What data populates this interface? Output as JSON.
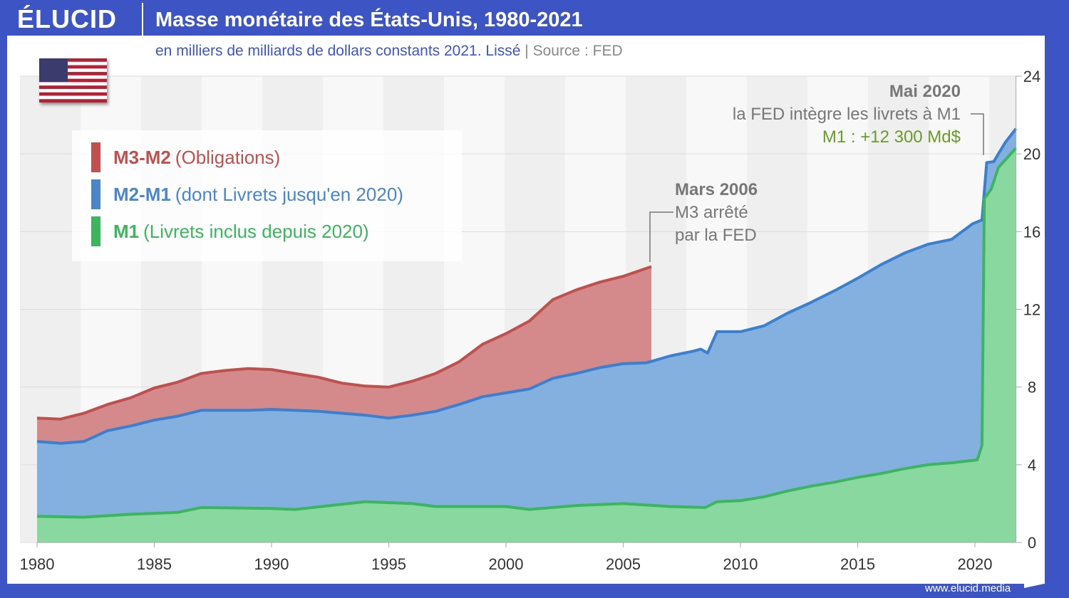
{
  "header": {
    "logo": "ÉLUCID",
    "title": "Masse monétaire des États-Unis, 1980-2021",
    "subtitle": "en milliers de milliards de dollars constants 2021. Lissé",
    "separator": "|",
    "source": "Source : FED",
    "url": "www.elucid.media"
  },
  "legend": [
    {
      "key": "M3-M2",
      "desc": "(Obligations)",
      "color": "#c0504d"
    },
    {
      "key": "M2-M1",
      "desc": "(dont Livrets jusqu'en 2020)",
      "color": "#4a86c8"
    },
    {
      "key": "M1",
      "desc": "(Livrets inclus depuis 2020)",
      "color": "#3cb55f"
    }
  ],
  "annotations": {
    "mars2006": {
      "title": "Mars 2006",
      "line1": "M3 arrêté",
      "line2": "par la FED"
    },
    "mai2020": {
      "title": "Mai 2020",
      "line1": "la FED intègre les livrets à M1",
      "line2": "M1 : +12 300 Md$"
    }
  },
  "chart_data": {
    "type": "area",
    "title": "Masse monétaire des États-Unis, 1980-2021",
    "ylabel": "en milliers de milliards de dollars constants 2021",
    "xlim": [
      1980,
      2021.75
    ],
    "ylim": [
      0,
      24
    ],
    "xticks": [
      1980,
      1985,
      1990,
      1995,
      2000,
      2005,
      2010,
      2015,
      2020
    ],
    "yticks": [
      0,
      4,
      8,
      12,
      16,
      20,
      24
    ],
    "grid": true,
    "legend_position": "top-left",
    "series": [
      {
        "name": "M3",
        "color": "#d48a8a",
        "line": "#c0504d",
        "points": [
          [
            1980,
            6.4
          ],
          [
            1981,
            6.35
          ],
          [
            1982,
            6.65
          ],
          [
            1983,
            7.1
          ],
          [
            1984,
            7.45
          ],
          [
            1985,
            7.95
          ],
          [
            1986,
            8.25
          ],
          [
            1987,
            8.7
          ],
          [
            1988,
            8.85
          ],
          [
            1989,
            8.95
          ],
          [
            1990,
            8.9
          ],
          [
            1991,
            8.7
          ],
          [
            1992,
            8.5
          ],
          [
            1993,
            8.2
          ],
          [
            1994,
            8.05
          ],
          [
            1995,
            8.0
          ],
          [
            1996,
            8.3
          ],
          [
            1997,
            8.7
          ],
          [
            1998,
            9.3
          ],
          [
            1999,
            10.2
          ],
          [
            2000,
            10.75
          ],
          [
            2001,
            11.4
          ],
          [
            2002,
            12.5
          ],
          [
            2003,
            13.0
          ],
          [
            2004,
            13.4
          ],
          [
            2005,
            13.7
          ],
          [
            2006.2,
            14.2
          ]
        ]
      },
      {
        "name": "M2",
        "color": "#84b0e0",
        "line": "#3a7fd0",
        "points": [
          [
            1980,
            5.2
          ],
          [
            1981,
            5.1
          ],
          [
            1982,
            5.2
          ],
          [
            1983,
            5.75
          ],
          [
            1984,
            6.0
          ],
          [
            1985,
            6.3
          ],
          [
            1986,
            6.5
          ],
          [
            1987,
            6.8
          ],
          [
            1988,
            6.8
          ],
          [
            1989,
            6.8
          ],
          [
            1990,
            6.85
          ],
          [
            1991,
            6.8
          ],
          [
            1992,
            6.75
          ],
          [
            1993,
            6.65
          ],
          [
            1994,
            6.55
          ],
          [
            1995,
            6.4
          ],
          [
            1996,
            6.55
          ],
          [
            1997,
            6.75
          ],
          [
            1998,
            7.1
          ],
          [
            1999,
            7.5
          ],
          [
            2000,
            7.7
          ],
          [
            2001,
            7.9
          ],
          [
            2002,
            8.45
          ],
          [
            2003,
            8.7
          ],
          [
            2004,
            9.0
          ],
          [
            2005,
            9.2
          ],
          [
            2006,
            9.25
          ],
          [
            2007,
            9.6
          ],
          [
            2008,
            9.85
          ],
          [
            2008.3,
            9.95
          ],
          [
            2008.6,
            9.75
          ],
          [
            2009,
            10.85
          ],
          [
            2010,
            10.85
          ],
          [
            2011,
            11.15
          ],
          [
            2012,
            11.8
          ],
          [
            2013,
            12.35
          ],
          [
            2014,
            12.95
          ],
          [
            2015,
            13.6
          ],
          [
            2016,
            14.3
          ],
          [
            2017,
            14.9
          ],
          [
            2018,
            15.35
          ],
          [
            2019,
            15.6
          ],
          [
            2019.9,
            16.4
          ],
          [
            2020.3,
            16.6
          ],
          [
            2020.5,
            19.55
          ],
          [
            2020.8,
            19.6
          ],
          [
            2021.3,
            20.6
          ],
          [
            2021.75,
            21.3
          ]
        ]
      },
      {
        "name": "M1",
        "color": "#88d8a0",
        "line": "#3cb55f",
        "points": [
          [
            1980,
            1.35
          ],
          [
            1982,
            1.3
          ],
          [
            1984,
            1.45
          ],
          [
            1986,
            1.55
          ],
          [
            1987,
            1.8
          ],
          [
            1990,
            1.75
          ],
          [
            1991,
            1.7
          ],
          [
            1994,
            2.1
          ],
          [
            1996,
            2.0
          ],
          [
            1997,
            1.85
          ],
          [
            2000,
            1.85
          ],
          [
            2001,
            1.7
          ],
          [
            2003,
            1.9
          ],
          [
            2005,
            2.0
          ],
          [
            2007,
            1.85
          ],
          [
            2008.5,
            1.8
          ],
          [
            2009,
            2.1
          ],
          [
            2010,
            2.15
          ],
          [
            2011,
            2.35
          ],
          [
            2012,
            2.65
          ],
          [
            2013,
            2.9
          ],
          [
            2014,
            3.1
          ],
          [
            2015,
            3.35
          ],
          [
            2016,
            3.55
          ],
          [
            2017,
            3.8
          ],
          [
            2018,
            4.0
          ],
          [
            2019,
            4.1
          ],
          [
            2020.1,
            4.25
          ],
          [
            2020.3,
            5.0
          ],
          [
            2020.4,
            17.7
          ],
          [
            2020.7,
            18.2
          ],
          [
            2021,
            19.3
          ],
          [
            2021.75,
            20.3
          ]
        ]
      }
    ]
  }
}
